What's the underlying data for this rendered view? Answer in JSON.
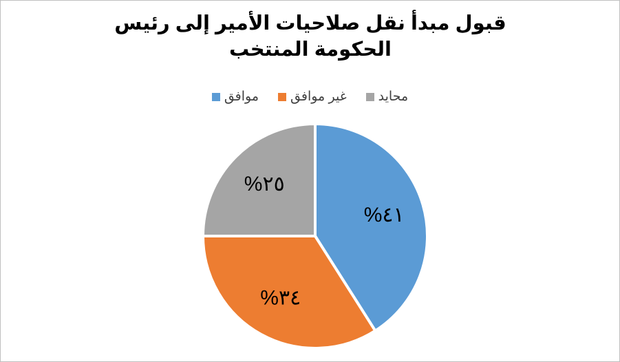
{
  "chart_data": {
    "type": "pie",
    "title": "قبول مبدأ نقل صلاحيات الأمير إلى رئيس الحكومة المنتخب",
    "categories": [
      "موافق",
      "غير موافق",
      "محايد"
    ],
    "values": [
      41,
      34,
      25
    ],
    "value_labels": [
      "٤١%",
      "٣٤%",
      "٢٥%"
    ],
    "colors": [
      "#5b9bd5",
      "#ed7d31",
      "#a5a5a5"
    ]
  }
}
